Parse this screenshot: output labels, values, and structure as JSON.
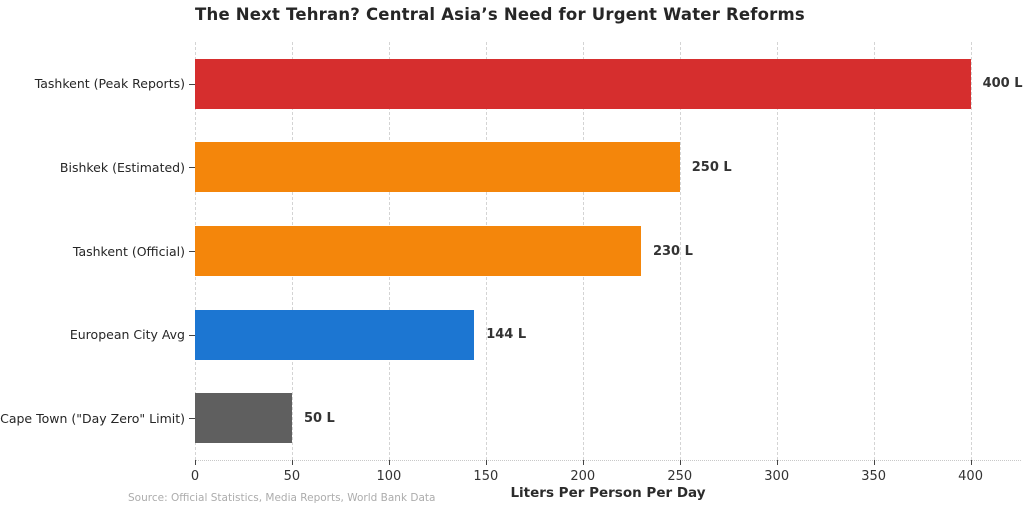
{
  "title": "The Next Tehran? Central Asia’s Need for Urgent Water Reforms",
  "source_note": "Source: Official Statistics, Media Reports, World Bank Data",
  "chart_data": {
    "type": "bar",
    "orientation": "horizontal",
    "title": "The Next Tehran? Central Asia’s Need for Urgent Water Reforms",
    "categories": [
      "Tashkent (Peak Reports)",
      "Bishkek (Estimated)",
      "Tashkent (Official)",
      "European City Avg",
      "Cape Town (\"Day Zero\" Limit)"
    ],
    "values": [
      400,
      250,
      230,
      144,
      50
    ],
    "value_labels": [
      "400 L",
      "250 L",
      "230 L",
      "144 L",
      "50 L"
    ],
    "bar_colors": [
      "#d62e2e",
      "#f4860b",
      "#f4860b",
      "#1c76d2",
      "#5f5f5f"
    ],
    "xlabel": "Liters Per Person Per Day",
    "ylabel": "",
    "xticks": [
      0,
      50,
      100,
      150,
      200,
      250,
      300,
      350,
      400
    ],
    "xlim": [
      0,
      426
    ],
    "grid": "vertical-dashed",
    "legend": "none",
    "source": "Source: Official Statistics, Media Reports, World Bank Data"
  },
  "colors": {
    "background": "#ffffff",
    "grid": "#d4d4d4",
    "title_text": "#262626",
    "tick_text": "#333333",
    "value_text": "#333333",
    "source_text": "#acacac",
    "red": "#d62e2e",
    "orange": "#f4860b",
    "blue": "#1c76d2",
    "gray": "#5f5f5f"
  }
}
